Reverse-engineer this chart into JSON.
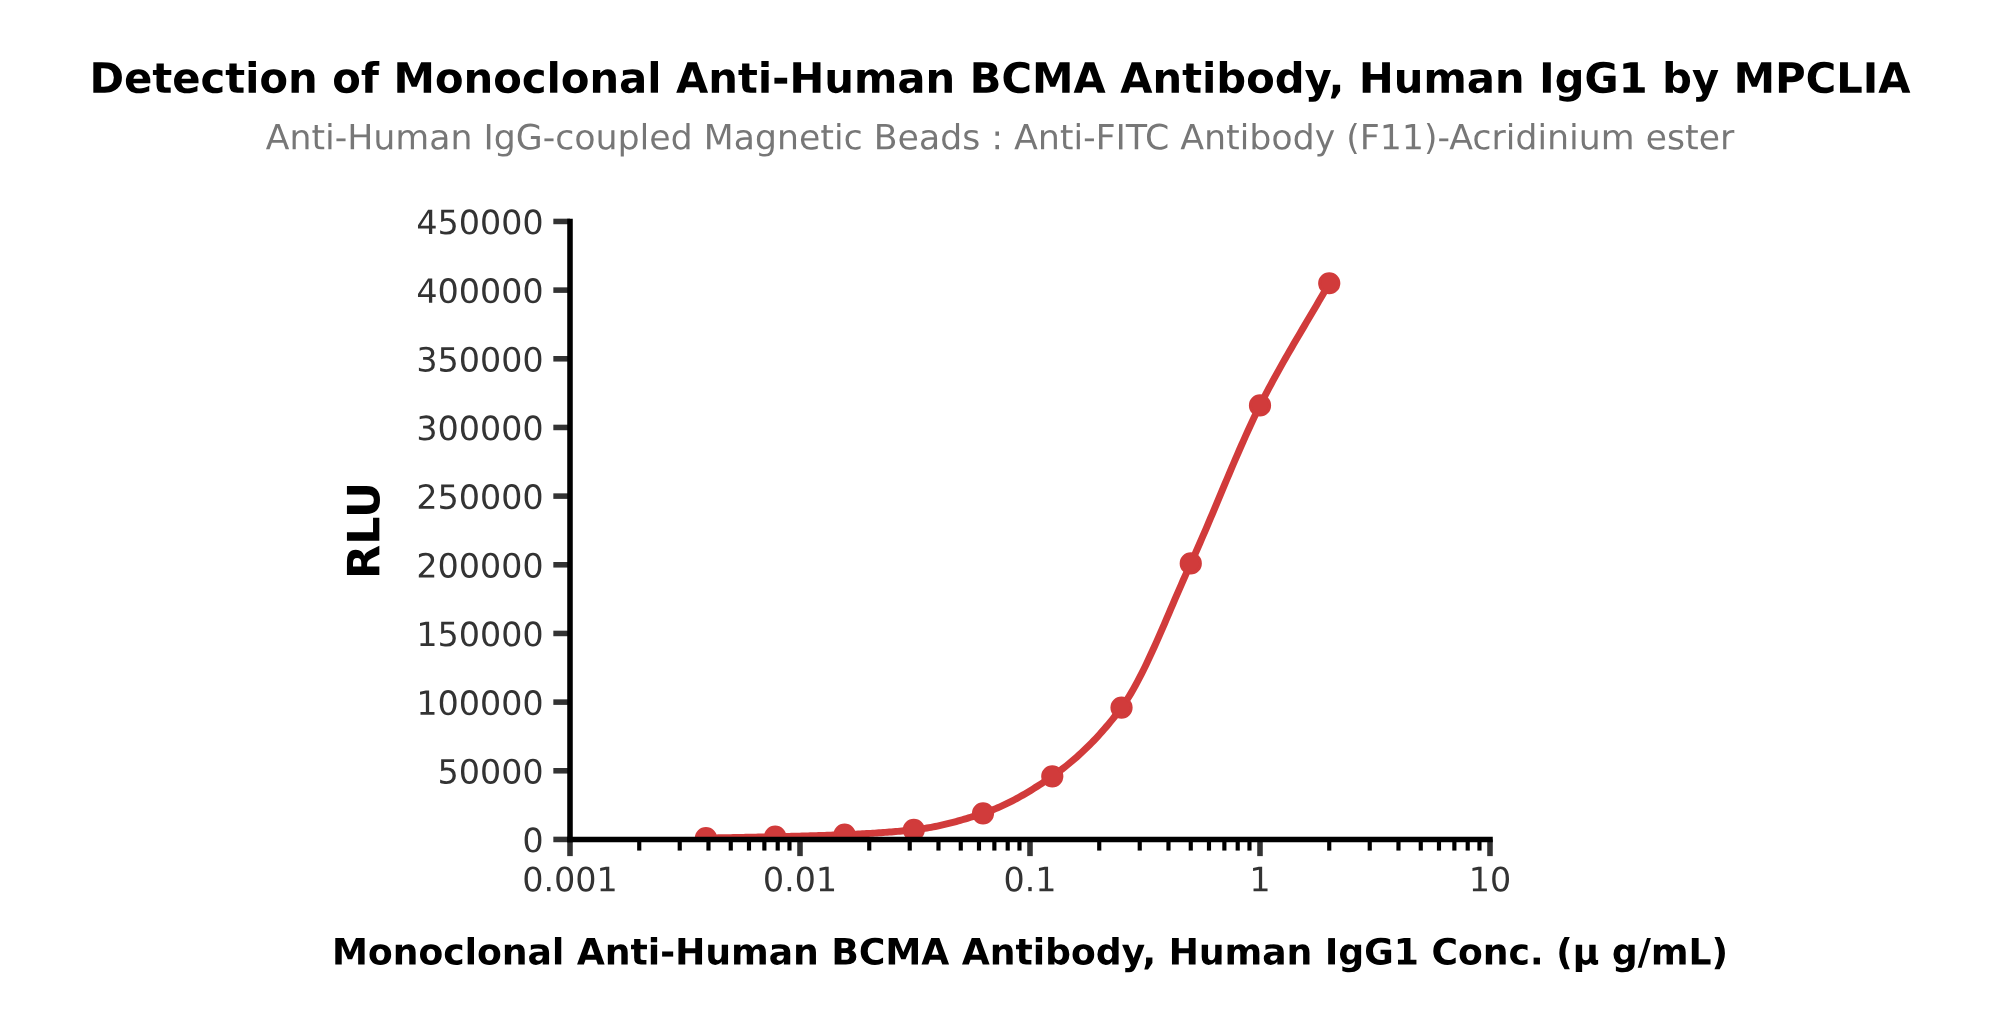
{
  "chart_data": {
    "type": "line",
    "title": "Detection of Monoclonal Anti-Human BCMA Antibody, Human IgG1 by MPCLIA",
    "subtitle": "Anti-Human IgG-coupled Magnetic Beads : Anti-FITC Antibody (F11)-Acridinium ester",
    "xlabel": "Monoclonal Anti-Human BCMA Antibody, Human IgG1 Conc. (μ g/mL)",
    "ylabel": "RLU",
    "log": "x",
    "xlim": [
      0.001,
      10
    ],
    "xticks": [
      0.001,
      0.01,
      0.1,
      1,
      10
    ],
    "ylim": [
      0,
      450000
    ],
    "yticks": [
      0,
      50000,
      100000,
      150000,
      200000,
      250000,
      300000,
      350000,
      400000,
      450000
    ],
    "grid": false,
    "marker": "circle",
    "line_style": "solid",
    "x": [
      0.0039,
      0.0078,
      0.015625,
      0.03125,
      0.0625,
      0.125,
      0.25,
      0.5,
      1,
      2
    ],
    "series": [
      {
        "color": "#d13b3b",
        "values": [
          1000,
          2000,
          3500,
          7000,
          19000,
          46000,
          96000,
          201000,
          316000,
          405000
        ]
      }
    ]
  }
}
